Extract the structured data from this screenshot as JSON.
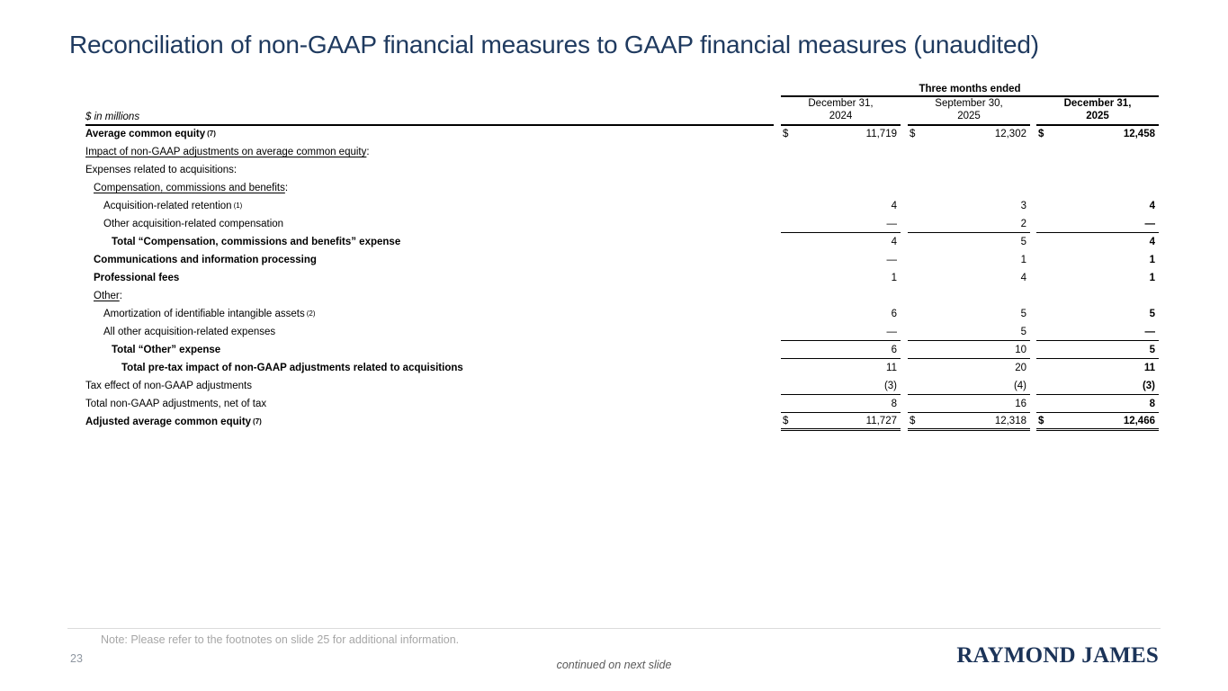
{
  "slide": {
    "title": "Reconciliation of non-GAAP financial measures to GAAP financial measures (unaudited)",
    "note": "Note: Please refer to the footnotes on slide 25 for additional information.",
    "page_number": "23",
    "continued": "continued on next slide",
    "logo": "RAYMOND JAMES",
    "colors": {
      "title_navy": "#1f3a5f",
      "logo_navy": "#1b3358",
      "note_gray": "#a6a6a6"
    }
  },
  "table": {
    "units_label": "$ in millions",
    "spanner": "Three months ended",
    "columns": [
      {
        "line1": "December 31,",
        "line2": "2024"
      },
      {
        "line1": "September 30,",
        "line2": "2025"
      },
      {
        "line1": "December 31,",
        "line2": "2025"
      }
    ],
    "rows": [
      {
        "label": "Average common equity",
        "sup": "(7)",
        "cur": "$",
        "v1": "11,719",
        "v2": "12,302",
        "v3": "12,458"
      },
      {
        "label": "Impact of non-GAAP adjustments on average common equity",
        "suffix": ":"
      },
      {
        "label": "Expenses related to acquisitions:"
      },
      {
        "label": "Compensation, commissions and benefits",
        "suffix": ":"
      },
      {
        "label": "Acquisition-related retention",
        "sup": "(1)",
        "v1": "4",
        "v2": "3",
        "v3": "4"
      },
      {
        "label": "Other acquisition-related compensation",
        "v1": "—",
        "v2": "2",
        "v3": "—"
      },
      {
        "label": "Total “Compensation, commissions and benefits” expense",
        "v1": "4",
        "v2": "5",
        "v3": "4"
      },
      {
        "label": "Communications and information processing",
        "v1": "—",
        "v2": "1",
        "v3": "1"
      },
      {
        "label": "Professional fees",
        "v1": "1",
        "v2": "4",
        "v3": "1"
      },
      {
        "label": "Other",
        "suffix": ":"
      },
      {
        "label": "Amortization of identifiable intangible assets",
        "sup": "(2)",
        "v1": "6",
        "v2": "5",
        "v3": "5"
      },
      {
        "label": "All other acquisition-related expenses",
        "v1": "—",
        "v2": "5",
        "v3": "—"
      },
      {
        "label": "Total “Other” expense",
        "v1": "6",
        "v2": "10",
        "v3": "5"
      },
      {
        "label": "Total pre-tax impact of non-GAAP adjustments related to acquisitions",
        "v1": "11",
        "v2": "20",
        "v3": "11"
      },
      {
        "label": "Tax effect of non-GAAP adjustments",
        "v1": "(3)",
        "v2": "(4)",
        "v3": "(3)"
      },
      {
        "label": "Total non-GAAP adjustments, net of tax",
        "v1": "8",
        "v2": "16",
        "v3": "8"
      },
      {
        "label": "Adjusted average common equity",
        "sup": "(7)",
        "cur": "$",
        "v1": "11,727",
        "v2": "12,318",
        "v3": "12,466"
      }
    ]
  }
}
